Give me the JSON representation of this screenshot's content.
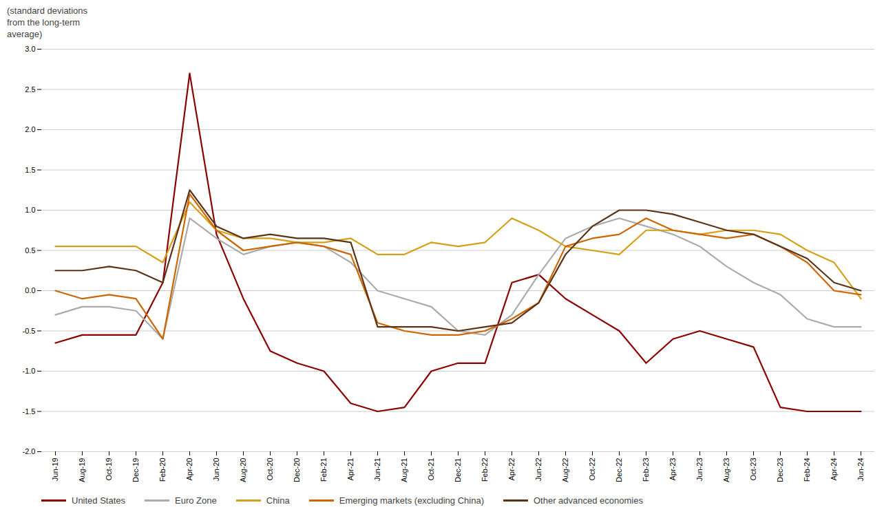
{
  "chart_data": {
    "type": "line",
    "ylabel": "(standard deviations\nfrom the long-term\naverage)",
    "categories": [
      "Jun-19",
      "Aug-19",
      "Oct-19",
      "Dec-19",
      "Feb-20",
      "Apr-20",
      "Jun-20",
      "Aug-20",
      "Oct-20",
      "Dec-20",
      "Feb-21",
      "Apr-21",
      "Jun-21",
      "Aug-21",
      "Oct-21",
      "Dec-21",
      "Feb-22",
      "Apr-22",
      "Jun-22",
      "Aug-22",
      "Oct-22",
      "Dec-22",
      "Feb-23",
      "Apr-23",
      "Jun-23",
      "Aug-23",
      "Oct-23",
      "Dec-23",
      "Feb-24",
      "Apr-24",
      "Jun-24"
    ],
    "series": [
      {
        "name": "United States",
        "color": "#8B0000",
        "values": [
          -0.65,
          -0.55,
          -0.55,
          -0.55,
          0.1,
          2.7,
          0.7,
          -0.1,
          -0.75,
          -0.9,
          -1.0,
          -1.4,
          -1.5,
          -1.45,
          -1.0,
          -0.9,
          -0.9,
          0.1,
          0.2,
          -0.1,
          -0.3,
          -0.5,
          -0.9,
          -0.6,
          -0.5,
          -0.6,
          -0.7,
          -1.45,
          -1.5,
          -1.5,
          -1.5
        ]
      },
      {
        "name": "Euro Zone",
        "color": "#ABABAB",
        "values": [
          -0.3,
          -0.2,
          -0.2,
          -0.25,
          -0.6,
          0.9,
          0.65,
          0.45,
          0.55,
          0.6,
          0.55,
          0.35,
          0.0,
          -0.1,
          -0.2,
          -0.5,
          -0.55,
          -0.3,
          0.2,
          0.65,
          0.8,
          0.9,
          0.8,
          0.7,
          0.55,
          0.3,
          0.1,
          -0.05,
          -0.35,
          -0.45,
          -0.45
        ]
      },
      {
        "name": "China",
        "color": "#D4A017",
        "values": [
          0.55,
          0.55,
          0.55,
          0.55,
          0.35,
          1.1,
          0.75,
          0.65,
          0.65,
          0.6,
          0.6,
          0.65,
          0.45,
          0.45,
          0.6,
          0.55,
          0.6,
          0.9,
          0.75,
          0.55,
          0.5,
          0.45,
          0.75,
          0.75,
          0.7,
          0.75,
          0.75,
          0.7,
          0.5,
          0.35,
          -0.1
        ]
      },
      {
        "name": "Emerging markets (excluding China)",
        "color": "#CC6600",
        "values": [
          0.0,
          -0.1,
          -0.05,
          -0.1,
          -0.6,
          1.2,
          0.75,
          0.5,
          0.55,
          0.6,
          0.55,
          0.45,
          -0.4,
          -0.5,
          -0.55,
          -0.55,
          -0.5,
          -0.35,
          -0.15,
          0.55,
          0.65,
          0.7,
          0.9,
          0.75,
          0.7,
          0.65,
          0.7,
          0.55,
          0.35,
          0.0,
          -0.05
        ]
      },
      {
        "name": "Other advanced economies",
        "color": "#5C3317",
        "values": [
          0.25,
          0.25,
          0.3,
          0.25,
          0.1,
          1.25,
          0.8,
          0.65,
          0.7,
          0.65,
          0.65,
          0.6,
          -0.45,
          -0.45,
          -0.45,
          -0.5,
          -0.45,
          -0.4,
          -0.15,
          0.45,
          0.8,
          1.0,
          1.0,
          0.95,
          0.85,
          0.75,
          0.7,
          0.55,
          0.4,
          0.1,
          0.0
        ]
      }
    ],
    "ylim": [
      -2.0,
      3.0
    ],
    "yticks": [
      {
        "value": -2,
        "label": "-2.0"
      },
      -1.5,
      {
        "value": -1,
        "label": "-1.0"
      },
      -0.5,
      {
        "value": 0,
        "label": "0.0"
      },
      0.5,
      {
        "value": 1,
        "label": "1.0"
      },
      1.5,
      {
        "value": 2,
        "label": "2.0"
      },
      2.5,
      {
        "value": 3,
        "label": "3.0"
      }
    ],
    "grid": true,
    "legend": "bottom"
  }
}
